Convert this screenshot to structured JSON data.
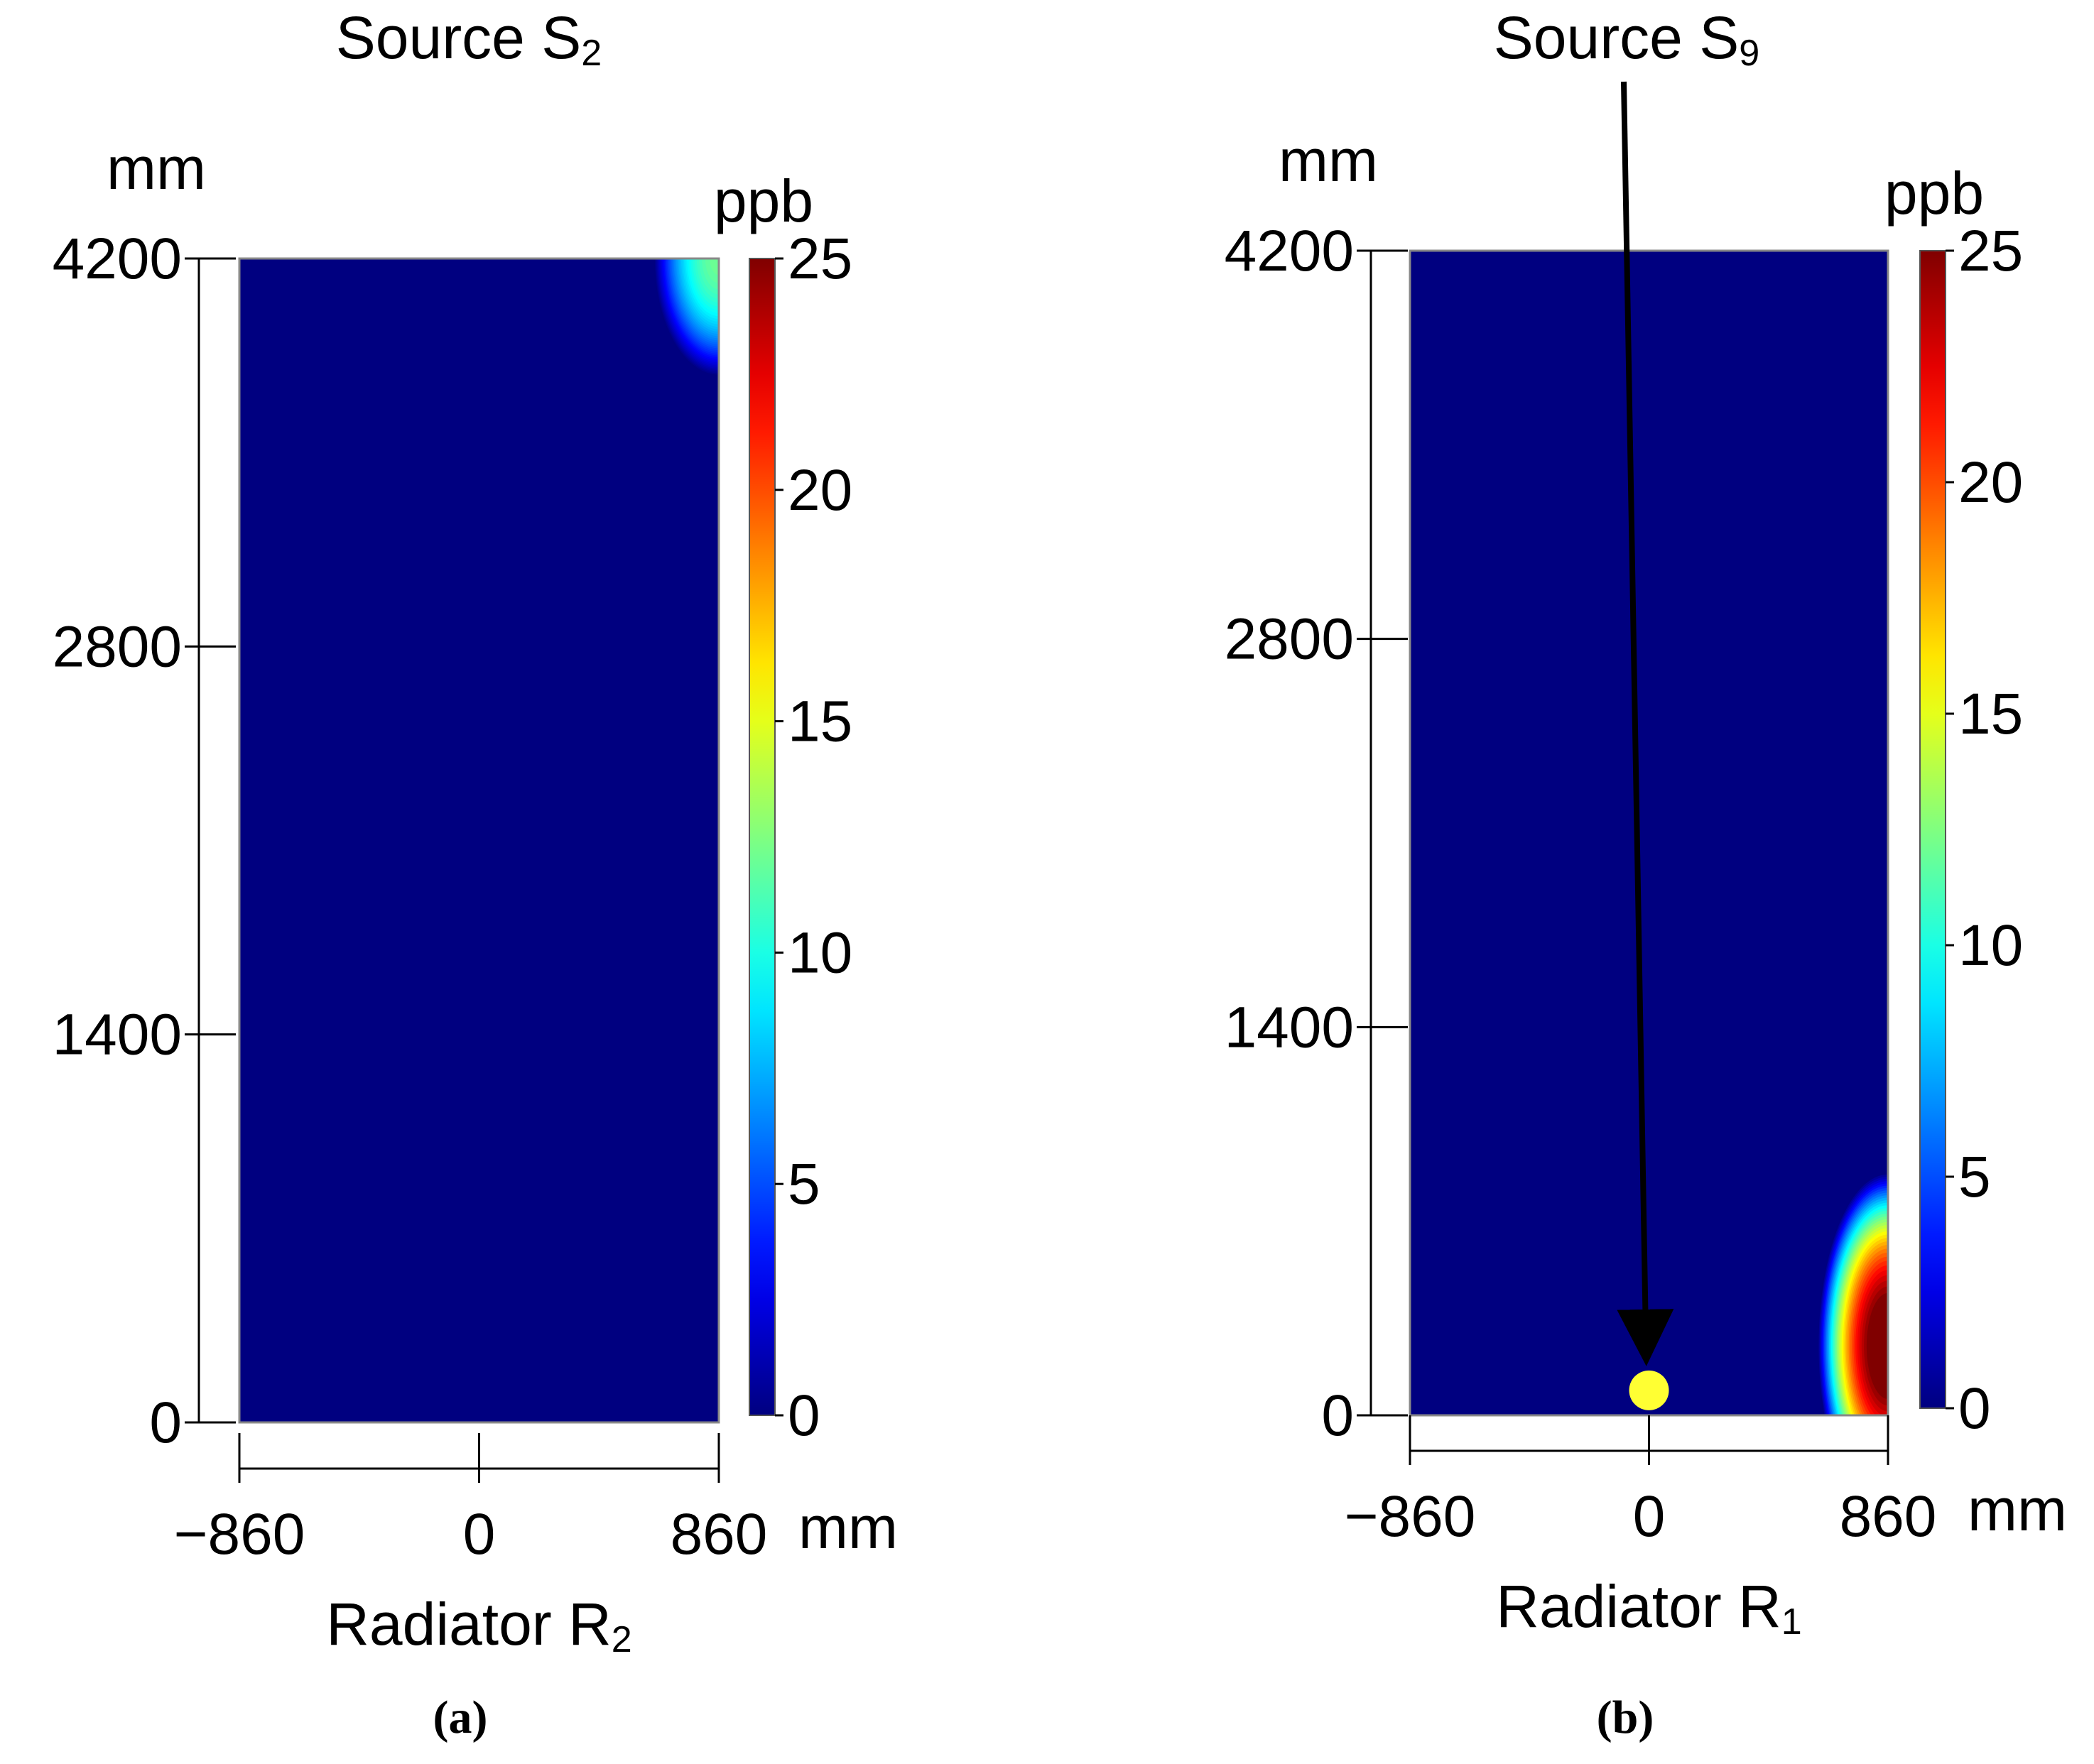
{
  "chart_data": [
    {
      "type": "heatmap",
      "panel_label": "(a)",
      "title_main": "Source S",
      "title_sub": "2",
      "xlabel_main": "Radiator R",
      "xlabel_sub": "2",
      "x_unit": "mm",
      "y_unit": "mm",
      "xlim": [
        -860,
        860
      ],
      "ylim": [
        0,
        4200
      ],
      "x_ticks": [
        -860,
        0,
        860
      ],
      "x_tick_labels": [
        "−860",
        "0",
        "860"
      ],
      "y_ticks": [
        0,
        1400,
        2800,
        4200
      ],
      "y_tick_labels": [
        "0",
        "1400",
        "2800",
        "4200"
      ],
      "colorbar": {
        "label": "ppb",
        "range": [
          0,
          25
        ],
        "ticks": [
          0,
          5,
          10,
          15,
          20,
          25
        ],
        "tick_labels": [
          "0",
          "5",
          "10",
          "15",
          "20",
          "25"
        ],
        "colormap": "jet"
      },
      "background_value": 0,
      "hotspots": [
        {
          "x": 860,
          "y": 4200,
          "peak": 12,
          "sx": 230,
          "sy": 420
        }
      ],
      "source_marker": null
    },
    {
      "type": "heatmap",
      "panel_label": "(b)",
      "title_main": "Source S",
      "title_sub": "9",
      "xlabel_main": "Radiator R",
      "xlabel_sub": "1",
      "x_unit": "mm",
      "y_unit": "mm",
      "xlim": [
        -860,
        860
      ],
      "ylim": [
        0,
        4200
      ],
      "x_ticks": [
        -860,
        0,
        860
      ],
      "x_tick_labels": [
        "−860",
        "0",
        "860"
      ],
      "y_ticks": [
        0,
        1400,
        2800,
        4200
      ],
      "y_tick_labels": [
        "0",
        "1400",
        "2800",
        "4200"
      ],
      "colorbar": {
        "label": "ppb",
        "range": [
          0,
          25
        ],
        "ticks": [
          0,
          5,
          10,
          15,
          20,
          25
        ],
        "tick_labels": [
          "0",
          "5",
          "10",
          "15",
          "20",
          "25"
        ],
        "colormap": "jet"
      },
      "background_value": 0,
      "hotspots": [
        {
          "x": 860,
          "y": 250,
          "peak": 27,
          "sx": 250,
          "sy": 620
        }
      ],
      "source_marker": {
        "x": 0,
        "y": 90,
        "color": "#ffff33"
      }
    }
  ]
}
